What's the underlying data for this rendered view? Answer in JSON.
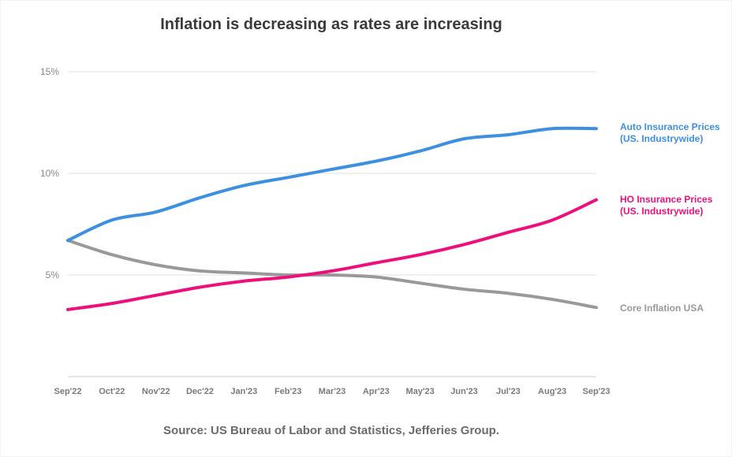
{
  "colors": {
    "auto": "#3d8fe0",
    "ho": "#ec0f7c",
    "core": "#999999",
    "grid": "#e1e1e1",
    "text": "#3a3a3a"
  },
  "chart_data": {
    "type": "line",
    "title": "Inflation is decreasing as rates are increasing",
    "source": "Source: US Bureau of Labor and Statistics, Jefferies Group.",
    "x": [
      "Sep'22",
      "Oct'22",
      "Nov'22",
      "Dec'22",
      "Jan'23",
      "Feb'23",
      "Mar'23",
      "Apr'23",
      "May'23",
      "Jun'23",
      "Jul'23",
      "Aug'23",
      "Sep'23"
    ],
    "y_ticks": [
      "5%",
      "10%",
      "15%"
    ],
    "ylim": [
      0,
      15
    ],
    "grid": true,
    "legend": "right, inline labels at line ends",
    "series": [
      {
        "key": "auto",
        "name_lines": [
          "Auto Insurance Prices",
          "(US. Industrywide)"
        ],
        "values": [
          6.7,
          7.7,
          8.1,
          8.8,
          9.4,
          9.8,
          10.2,
          10.6,
          11.1,
          11.7,
          11.9,
          12.2,
          12.2
        ]
      },
      {
        "key": "ho",
        "name_lines": [
          "HO Insurance Prices",
          "(US. Industrywide)"
        ],
        "values": [
          3.3,
          3.6,
          4.0,
          4.4,
          4.7,
          4.9,
          5.2,
          5.6,
          6.0,
          6.5,
          7.1,
          7.7,
          8.7
        ]
      },
      {
        "key": "core",
        "name_lines": [
          "Core Inflation USA"
        ],
        "values": [
          6.7,
          6.0,
          5.5,
          5.2,
          5.1,
          5.0,
          5.0,
          4.9,
          4.6,
          4.3,
          4.1,
          3.8,
          3.4
        ]
      }
    ]
  }
}
